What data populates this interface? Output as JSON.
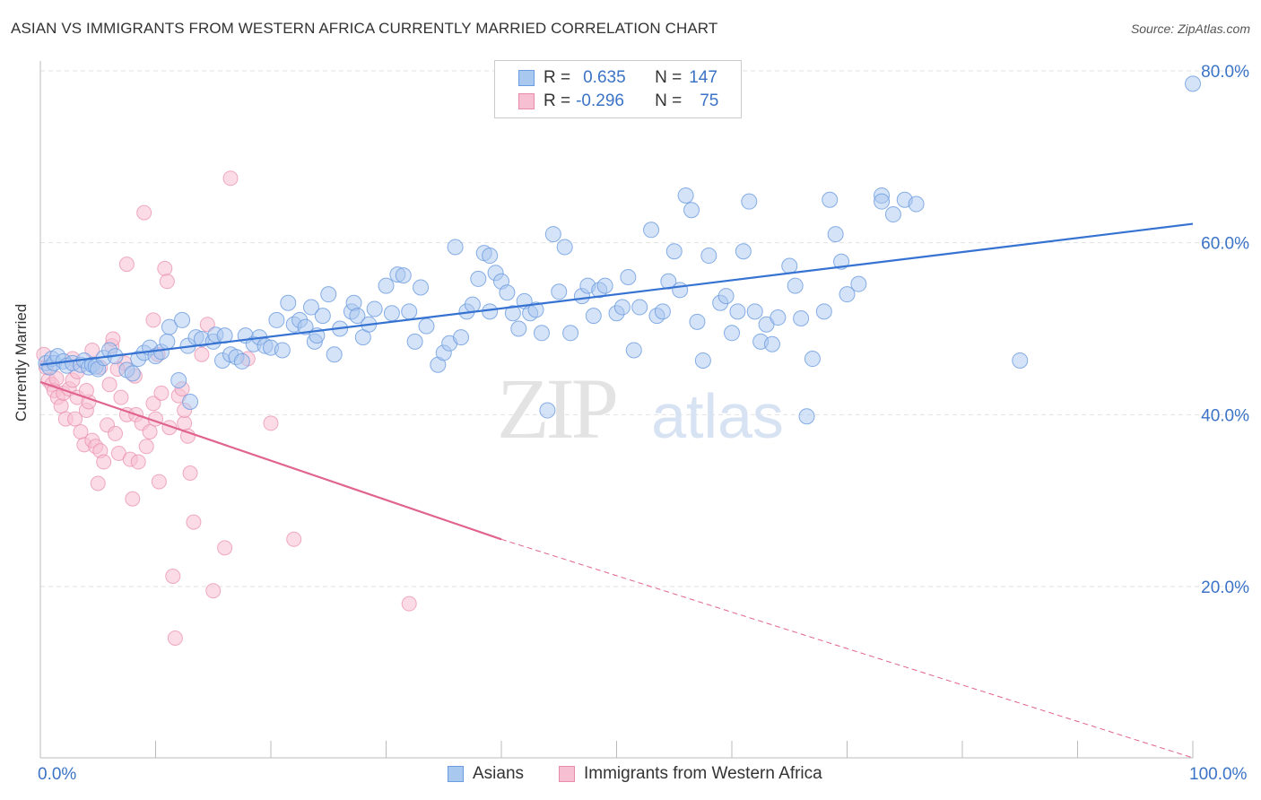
{
  "title": "ASIAN VS IMMIGRANTS FROM WESTERN AFRICA CURRENTLY MARRIED CORRELATION CHART",
  "source": "Source: ZipAtlas.com",
  "watermark": {
    "zip": "ZIP",
    "atlas": "atlas"
  },
  "legend_top": {
    "rows": [
      {
        "r_label": "R =",
        "r_value": "0.635",
        "n_label": "N =",
        "n_value": "147",
        "color": "#a9c8f0",
        "border": "#6b9be0"
      },
      {
        "r_label": "R =",
        "r_value": "-0.296",
        "n_label": "N =",
        "n_value": "75",
        "color": "#f7bfd2",
        "border": "#e88aaa"
      }
    ]
  },
  "chart_data": {
    "type": "scatter",
    "ylabel": "Currently Married",
    "xlim": [
      0,
      100
    ],
    "ylim": [
      0,
      85
    ],
    "x_tick_labels": [
      "0.0%",
      "100.0%"
    ],
    "y_ticks": [
      20,
      40,
      60,
      80
    ],
    "y_tick_labels": [
      "20.0%",
      "40.0%",
      "60.0%",
      "80.0%"
    ],
    "grid": true,
    "colors": {
      "asians": "#6b9be0",
      "asians_fill": "#a9c8f0",
      "wa": "#e88aaa",
      "wa_fill": "#f7bfd2",
      "blue_line": "#3572d1",
      "pink_line": "#e06390",
      "axis_text": "#3b73c6"
    },
    "series": [
      {
        "name": "Asians",
        "trend": {
          "x": [
            0,
            100
          ],
          "y": [
            45.8,
            62.2
          ]
        },
        "points": [
          [
            0.5,
            46
          ],
          [
            0.8,
            45.5
          ],
          [
            1,
            46.5
          ],
          [
            1.2,
            46
          ],
          [
            1.5,
            46.8
          ],
          [
            2,
            46.2
          ],
          [
            2.3,
            45.7
          ],
          [
            2.8,
            46
          ],
          [
            3.5,
            45.8
          ],
          [
            3.8,
            46.3
          ],
          [
            4.2,
            45.5
          ],
          [
            4.5,
            45.8
          ],
          [
            4.8,
            45.6
          ],
          [
            5,
            45.3
          ],
          [
            5.5,
            46.6
          ],
          [
            6,
            47.5
          ],
          [
            6.5,
            46.8
          ],
          [
            7.5,
            45.2
          ],
          [
            8,
            44.8
          ],
          [
            8.5,
            46.5
          ],
          [
            9,
            47.2
          ],
          [
            9.5,
            47.8
          ],
          [
            10,
            46.8
          ],
          [
            10.5,
            47.3
          ],
          [
            11,
            48.5
          ],
          [
            11.2,
            50.2
          ],
          [
            12,
            44
          ],
          [
            12.3,
            51
          ],
          [
            12.8,
            48
          ],
          [
            13,
            41.5
          ],
          [
            13.5,
            49
          ],
          [
            14,
            48.8
          ],
          [
            15,
            48.5
          ],
          [
            15.2,
            49.3
          ],
          [
            15.8,
            46.3
          ],
          [
            16,
            49.2
          ],
          [
            16.5,
            47
          ],
          [
            17,
            46.7
          ],
          [
            17.5,
            46.2
          ],
          [
            17.8,
            49.2
          ],
          [
            18.5,
            48.2
          ],
          [
            19,
            49
          ],
          [
            19.5,
            48
          ],
          [
            20,
            47.8
          ],
          [
            20.5,
            51
          ],
          [
            21,
            47.5
          ],
          [
            21.5,
            53
          ],
          [
            22,
            50.5
          ],
          [
            22.5,
            51
          ],
          [
            23,
            50.2
          ],
          [
            23.5,
            52.5
          ],
          [
            23.8,
            48.5
          ],
          [
            24,
            49.2
          ],
          [
            24.5,
            51.5
          ],
          [
            25,
            54
          ],
          [
            25.5,
            47
          ],
          [
            26,
            50
          ],
          [
            27,
            52
          ],
          [
            27.2,
            53
          ],
          [
            27.5,
            51.5
          ],
          [
            28,
            49
          ],
          [
            28.5,
            50.5
          ],
          [
            29,
            52.3
          ],
          [
            30,
            55
          ],
          [
            30.5,
            51.8
          ],
          [
            31,
            56.3
          ],
          [
            31.5,
            56.2
          ],
          [
            32,
            52
          ],
          [
            32.5,
            48.5
          ],
          [
            33,
            54.8
          ],
          [
            33.5,
            50.3
          ],
          [
            34.5,
            45.8
          ],
          [
            35,
            47.2
          ],
          [
            35.5,
            48.3
          ],
          [
            36,
            59.5
          ],
          [
            36.5,
            49
          ],
          [
            37,
            52
          ],
          [
            37.5,
            52.8
          ],
          [
            38,
            55.8
          ],
          [
            38.5,
            58.8
          ],
          [
            39,
            52
          ],
          [
            39,
            58.5
          ],
          [
            39.5,
            56.5
          ],
          [
            40,
            55.5
          ],
          [
            40.5,
            54.2
          ],
          [
            41,
            51.8
          ],
          [
            41.5,
            50
          ],
          [
            42,
            53.2
          ],
          [
            42.5,
            51.8
          ],
          [
            43,
            52.2
          ],
          [
            43.5,
            49.5
          ],
          [
            44,
            40.5
          ],
          [
            44.5,
            61
          ],
          [
            45,
            54.3
          ],
          [
            45.5,
            59.5
          ],
          [
            46,
            49.5
          ],
          [
            47,
            53.8
          ],
          [
            47.5,
            55
          ],
          [
            48,
            51.5
          ],
          [
            48.5,
            54.5
          ],
          [
            49,
            55
          ],
          [
            50,
            51.8
          ],
          [
            50.5,
            52.5
          ],
          [
            51,
            56
          ],
          [
            51.5,
            47.5
          ],
          [
            52,
            52.5
          ],
          [
            53,
            61.5
          ],
          [
            53.5,
            51.5
          ],
          [
            54,
            52
          ],
          [
            54.5,
            55.5
          ],
          [
            55,
            59
          ],
          [
            55.5,
            54.5
          ],
          [
            56,
            65.5
          ],
          [
            56.5,
            63.8
          ],
          [
            57,
            50.8
          ],
          [
            57.5,
            46.3
          ],
          [
            58,
            58.5
          ],
          [
            59,
            53
          ],
          [
            59.5,
            53.8
          ],
          [
            60,
            49.5
          ],
          [
            60.5,
            52
          ],
          [
            61,
            59
          ],
          [
            61.5,
            64.8
          ],
          [
            62,
            52
          ],
          [
            62.5,
            48.5
          ],
          [
            63,
            50.5
          ],
          [
            63.5,
            48.2
          ],
          [
            64,
            51.3
          ],
          [
            65,
            57.3
          ],
          [
            65.5,
            55
          ],
          [
            66,
            51.2
          ],
          [
            66.5,
            39.8
          ],
          [
            67,
            46.5
          ],
          [
            68,
            52
          ],
          [
            68.5,
            65
          ],
          [
            69,
            61
          ],
          [
            69.5,
            57.8
          ],
          [
            70,
            54
          ],
          [
            71,
            55.2
          ],
          [
            73,
            65.5
          ],
          [
            73,
            64.8
          ],
          [
            74,
            63.3
          ],
          [
            75,
            65
          ],
          [
            76,
            64.5
          ],
          [
            85,
            46.3
          ],
          [
            100,
            78.5
          ]
        ]
      },
      {
        "name": "Immigrants from Western Africa",
        "trend": {
          "x": [
            0,
            40
          ],
          "y": [
            43.8,
            25.5
          ]
        },
        "trend_dashed": {
          "x": [
            40,
            100
          ],
          "y": [
            25.5,
            -2.3
          ]
        },
        "points": [
          [
            0.3,
            47
          ],
          [
            0.5,
            45.5
          ],
          [
            0.7,
            44
          ],
          [
            1,
            43.5
          ],
          [
            1.2,
            42.8
          ],
          [
            1.5,
            42
          ],
          [
            1.8,
            41
          ],
          [
            2,
            42.5
          ],
          [
            2.2,
            39.5
          ],
          [
            2.5,
            43
          ],
          [
            2.8,
            44
          ],
          [
            3,
            39.5
          ],
          [
            3.2,
            42
          ],
          [
            3.5,
            38
          ],
          [
            3.8,
            36.5
          ],
          [
            4,
            40.5
          ],
          [
            4.2,
            41.5
          ],
          [
            4.5,
            37
          ],
          [
            4.8,
            36.3
          ],
          [
            5,
            32
          ],
          [
            5.2,
            35.8
          ],
          [
            5.5,
            34.5
          ],
          [
            5.8,
            38.8
          ],
          [
            6,
            43.5
          ],
          [
            6.2,
            48
          ],
          [
            6.5,
            37.8
          ],
          [
            6.8,
            35.5
          ],
          [
            7,
            42
          ],
          [
            7.3,
            46
          ],
          [
            7.5,
            40
          ],
          [
            7.8,
            34.8
          ],
          [
            8,
            30.2
          ],
          [
            8.3,
            40
          ],
          [
            8.5,
            34.5
          ],
          [
            8.8,
            39
          ],
          [
            9,
            63.5
          ],
          [
            9.2,
            36.3
          ],
          [
            9.5,
            38
          ],
          [
            9.8,
            41.3
          ],
          [
            10,
            39.5
          ],
          [
            10.3,
            32.2
          ],
          [
            10.5,
            42.5
          ],
          [
            10.8,
            57
          ],
          [
            11,
            55.5
          ],
          [
            11.2,
            38.5
          ],
          [
            11.5,
            21.2
          ],
          [
            11.7,
            14
          ],
          [
            12,
            42.2
          ],
          [
            12.3,
            43
          ],
          [
            12.5,
            39
          ],
          [
            12.8,
            37.5
          ],
          [
            13,
            33.2
          ],
          [
            13.3,
            27.5
          ],
          [
            14,
            47
          ],
          [
            14.5,
            50.5
          ],
          [
            15,
            19.5
          ],
          [
            16,
            24.5
          ],
          [
            16.5,
            67.5
          ],
          [
            18,
            46.5
          ],
          [
            20,
            39
          ],
          [
            22,
            25.5
          ],
          [
            32,
            18
          ],
          [
            7.5,
            57.5
          ],
          [
            9.8,
            51
          ],
          [
            3.2,
            45
          ],
          [
            5.2,
            45.5
          ],
          [
            1.4,
            44.2
          ],
          [
            2.8,
            46.5
          ],
          [
            4,
            42.8
          ],
          [
            6.7,
            45.3
          ],
          [
            8.2,
            44.5
          ],
          [
            10.2,
            47
          ],
          [
            12.5,
            40.5
          ],
          [
            6.3,
            48.8
          ],
          [
            4.5,
            47.5
          ]
        ]
      }
    ]
  },
  "bottom_legend": [
    {
      "label": "Asians"
    },
    {
      "label": "Immigrants from Western Africa"
    }
  ]
}
